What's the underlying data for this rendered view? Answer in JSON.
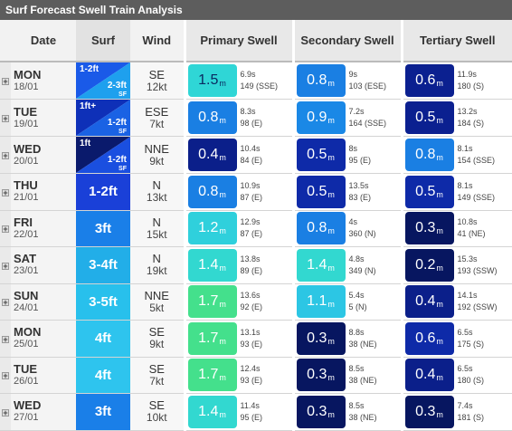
{
  "title": "Surf Forecast Swell Train Analysis",
  "headers": {
    "date": "Date",
    "surf": "Surf",
    "wind": "Wind",
    "primary": "Primary Swell",
    "secondary": "Secondary Swell",
    "tertiary": "Tertiary Swell"
  },
  "expand_glyph": "+",
  "colors": {
    "header_bar": "#5d5d5d",
    "surf_navy": "#0a1a6c",
    "surf_blue": "#1a4fe0",
    "surf_mid": "#1a73e8",
    "surf_cyan": "#24b4f2",
    "swell_cyan": "#2fd8d2",
    "swell_blue": "#1a80e0",
    "swell_navy": "#0a1a6c",
    "swell_mint": "#44e08c",
    "swell_navy2": "#0b1f8a"
  },
  "units": {
    "swell": "m"
  },
  "rows": [
    {
      "day": "MON",
      "date": "18/01",
      "surf": {
        "split": true,
        "top": "1-2ft",
        "bottom": "2-3ft",
        "sf": "SF",
        "color_a": "#1a5ae8",
        "color_b": "#1ea0ee"
      },
      "wind": {
        "dir": "SE",
        "speed": "12kt"
      },
      "primary": {
        "h": "1.5",
        "unit": "m",
        "period": "6.9s",
        "dir": "149 (SSE)",
        "color": "#2fd6d6",
        "text": "#0a2a60"
      },
      "secondary": {
        "h": "0.8",
        "unit": "m",
        "period": "9s",
        "dir": "103 (ESE)",
        "color": "#1a7fe3",
        "text": "#ffffff"
      },
      "tertiary": {
        "h": "0.6",
        "unit": "m",
        "period": "11.9s",
        "dir": "180 (S)",
        "color": "#0b2090",
        "text": "#ffffff"
      }
    },
    {
      "day": "TUE",
      "date": "19/01",
      "surf": {
        "split": true,
        "top": "1ft+",
        "bottom": "1-2ft",
        "sf": "SF",
        "color_a": "#0e30b8",
        "color_b": "#1a62e4"
      },
      "wind": {
        "dir": "ESE",
        "speed": "7kt"
      },
      "primary": {
        "h": "0.8",
        "unit": "m",
        "period": "8.3s",
        "dir": "98 (E)",
        "color": "#1a7fe3",
        "text": "#ffffff"
      },
      "secondary": {
        "h": "0.9",
        "unit": "m",
        "period": "7.2s",
        "dir": "164 (SSE)",
        "color": "#1a88e6",
        "text": "#ffffff"
      },
      "tertiary": {
        "h": "0.5",
        "unit": "m",
        "period": "13.2s",
        "dir": "184 (S)",
        "color": "#0b2090",
        "text": "#ffffff"
      }
    },
    {
      "day": "WED",
      "date": "20/01",
      "surf": {
        "split": true,
        "top": "1ft",
        "bottom": "1-2ft",
        "sf": "SF",
        "color_a": "#0a1a6c",
        "color_b": "#1a4fe0"
      },
      "wind": {
        "dir": "NNE",
        "speed": "9kt"
      },
      "primary": {
        "h": "0.4",
        "unit": "m",
        "period": "10.4s",
        "dir": "84 (E)",
        "color": "#0b1f8a",
        "text": "#ffffff"
      },
      "secondary": {
        "h": "0.5",
        "unit": "m",
        "period": "8s",
        "dir": "95 (E)",
        "color": "#0e2aa8",
        "text": "#ffffff"
      },
      "tertiary": {
        "h": "0.8",
        "unit": "m",
        "period": "8.1s",
        "dir": "154 (SSE)",
        "color": "#1a7fe3",
        "text": "#ffffff"
      }
    },
    {
      "day": "THU",
      "date": "21/01",
      "surf": {
        "split": false,
        "label": "1-2ft",
        "color": "#1a40d8"
      },
      "wind": {
        "dir": "N",
        "speed": "13kt"
      },
      "primary": {
        "h": "0.8",
        "unit": "m",
        "period": "10.9s",
        "dir": "87 (E)",
        "color": "#1a7fe3",
        "text": "#ffffff"
      },
      "secondary": {
        "h": "0.5",
        "unit": "m",
        "period": "13.5s",
        "dir": "83 (E)",
        "color": "#0e2aa8",
        "text": "#ffffff"
      },
      "tertiary": {
        "h": "0.5",
        "unit": "m",
        "period": "8.1s",
        "dir": "149 (SSE)",
        "color": "#0e2aa8",
        "text": "#ffffff"
      }
    },
    {
      "day": "FRI",
      "date": "22/01",
      "surf": {
        "split": false,
        "label": "3ft",
        "color": "#1a7fe8"
      },
      "wind": {
        "dir": "N",
        "speed": "15kt"
      },
      "primary": {
        "h": "1.2",
        "unit": "m",
        "period": "12.9s",
        "dir": "87 (E)",
        "color": "#2fd0dc",
        "text": "#ffffff"
      },
      "secondary": {
        "h": "0.8",
        "unit": "m",
        "period": "4s",
        "dir": "360 (N)",
        "color": "#1a7fe3",
        "text": "#ffffff"
      },
      "tertiary": {
        "h": "0.3",
        "unit": "m",
        "period": "10.8s",
        "dir": "41 (NE)",
        "color": "#071660",
        "text": "#ffffff"
      }
    },
    {
      "day": "SAT",
      "date": "23/01",
      "surf": {
        "split": false,
        "label": "3-4ft",
        "color": "#22aee8"
      },
      "wind": {
        "dir": "N",
        "speed": "19kt"
      },
      "primary": {
        "h": "1.4",
        "unit": "m",
        "period": "13.8s",
        "dir": "89 (E)",
        "color": "#32d8d0",
        "text": "#ffffff"
      },
      "secondary": {
        "h": "1.4",
        "unit": "m",
        "period": "4.8s",
        "dir": "349 (N)",
        "color": "#32d8d0",
        "text": "#ffffff"
      },
      "tertiary": {
        "h": "0.2",
        "unit": "m",
        "period": "15.3s",
        "dir": "193 (SSW)",
        "color": "#071660",
        "text": "#ffffff"
      }
    },
    {
      "day": "SUN",
      "date": "24/01",
      "surf": {
        "split": false,
        "label": "3-5ft",
        "color": "#28c0ec"
      },
      "wind": {
        "dir": "NNE",
        "speed": "5kt"
      },
      "primary": {
        "h": "1.7",
        "unit": "m",
        "period": "13.6s",
        "dir": "92 (E)",
        "color": "#44e08c",
        "text": "#ffffff"
      },
      "secondary": {
        "h": "1.1",
        "unit": "m",
        "period": "5.4s",
        "dir": "5 (N)",
        "color": "#2cc6e4",
        "text": "#ffffff"
      },
      "tertiary": {
        "h": "0.4",
        "unit": "m",
        "period": "14.1s",
        "dir": "192 (SSW)",
        "color": "#0b1f8a",
        "text": "#ffffff"
      }
    },
    {
      "day": "MON",
      "date": "25/01",
      "surf": {
        "split": false,
        "label": "4ft",
        "color": "#2ec4ee"
      },
      "wind": {
        "dir": "SE",
        "speed": "9kt"
      },
      "primary": {
        "h": "1.7",
        "unit": "m",
        "period": "13.1s",
        "dir": "93 (E)",
        "color": "#44e08c",
        "text": "#ffffff"
      },
      "secondary": {
        "h": "0.3",
        "unit": "m",
        "period": "8.8s",
        "dir": "38 (NE)",
        "color": "#071660",
        "text": "#ffffff"
      },
      "tertiary": {
        "h": "0.6",
        "unit": "m",
        "period": "6.5s",
        "dir": "175 (S)",
        "color": "#0e2aa8",
        "text": "#ffffff"
      }
    },
    {
      "day": "TUE",
      "date": "26/01",
      "surf": {
        "split": false,
        "label": "4ft",
        "color": "#2ec4ee"
      },
      "wind": {
        "dir": "SE",
        "speed": "7kt"
      },
      "primary": {
        "h": "1.7",
        "unit": "m",
        "period": "12.4s",
        "dir": "93 (E)",
        "color": "#44e08c",
        "text": "#ffffff"
      },
      "secondary": {
        "h": "0.3",
        "unit": "m",
        "period": "8.5s",
        "dir": "38 (NE)",
        "color": "#071660",
        "text": "#ffffff"
      },
      "tertiary": {
        "h": "0.4",
        "unit": "m",
        "period": "6.5s",
        "dir": "180 (S)",
        "color": "#0b1f8a",
        "text": "#ffffff"
      }
    },
    {
      "day": "WED",
      "date": "27/01",
      "surf": {
        "split": false,
        "label": "3ft",
        "color": "#1a7fe8"
      },
      "wind": {
        "dir": "SE",
        "speed": "10kt"
      },
      "primary": {
        "h": "1.4",
        "unit": "m",
        "period": "11.4s",
        "dir": "95 (E)",
        "color": "#32d8d0",
        "text": "#ffffff"
      },
      "secondary": {
        "h": "0.3",
        "unit": "m",
        "period": "8.5s",
        "dir": "38 (NE)",
        "color": "#071660",
        "text": "#ffffff"
      },
      "tertiary": {
        "h": "0.3",
        "unit": "m",
        "period": "7.4s",
        "dir": "181 (S)",
        "color": "#071660",
        "text": "#ffffff"
      }
    }
  ]
}
